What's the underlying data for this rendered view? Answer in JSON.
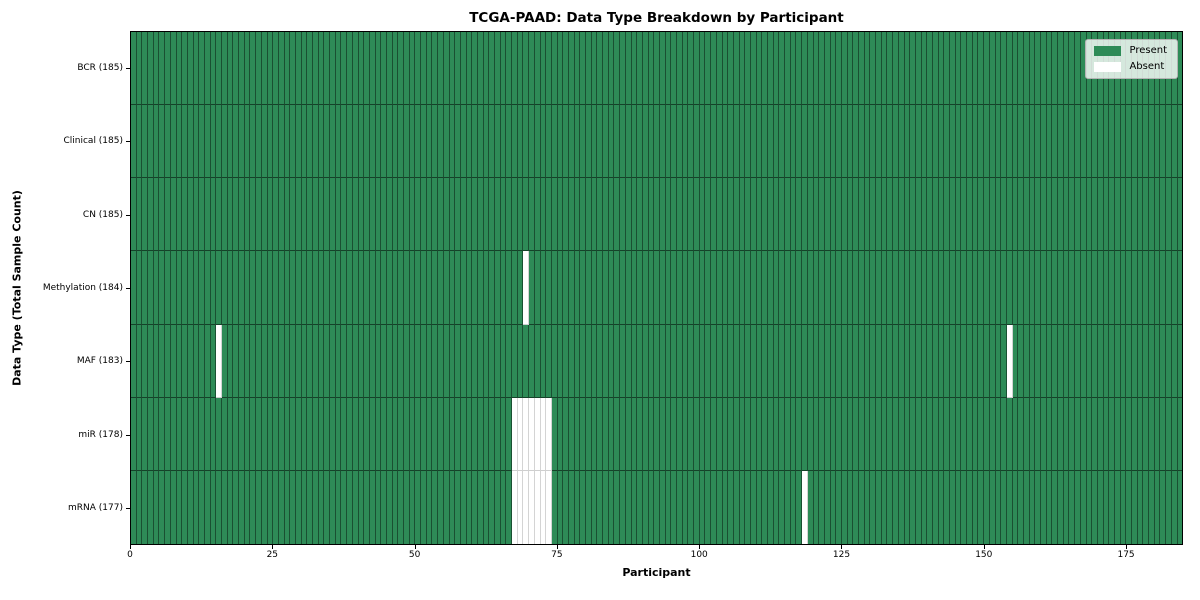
{
  "title": "TCGA-PAAD: Data Type Breakdown by Participant",
  "xlabel": "Participant",
  "ylabel": "Data Type (Total Sample Count)",
  "colors": {
    "present": "#2e8b57",
    "absent": "#ffffff"
  },
  "chart_data": {
    "type": "heatmap",
    "title": "TCGA-PAAD: Data Type Breakdown by Participant",
    "xlabel": "Participant",
    "ylabel": "Data Type (Total Sample Count)",
    "x_range": [
      0,
      185
    ],
    "n_participants": 185,
    "x_ticks": [
      0,
      25,
      50,
      75,
      100,
      125,
      150,
      175
    ],
    "grid": false,
    "legend_position": "upper right",
    "rows": [
      {
        "label": "BCR (185)",
        "data_type": "BCR",
        "total": 185,
        "absent_participants": []
      },
      {
        "label": "Clinical (185)",
        "data_type": "Clinical",
        "total": 185,
        "absent_participants": []
      },
      {
        "label": "CN (185)",
        "data_type": "CN",
        "total": 185,
        "absent_participants": []
      },
      {
        "label": "Methylation (184)",
        "data_type": "Methylation",
        "total": 184,
        "absent_participants": [
          69
        ]
      },
      {
        "label": "MAF (183)",
        "data_type": "MAF",
        "total": 183,
        "absent_participants": [
          15,
          154
        ]
      },
      {
        "label": "miR (178)",
        "data_type": "miR",
        "total": 178,
        "absent_participants": [
          67,
          68,
          69,
          70,
          71,
          72,
          73
        ]
      },
      {
        "label": "mRNA (177)",
        "data_type": "mRNA",
        "total": 177,
        "absent_participants": [
          67,
          68,
          69,
          70,
          71,
          72,
          73,
          118
        ]
      }
    ],
    "legend": [
      {
        "label": "Present",
        "color": "#2e8b57"
      },
      {
        "label": "Absent",
        "color": "#ffffff"
      }
    ]
  }
}
